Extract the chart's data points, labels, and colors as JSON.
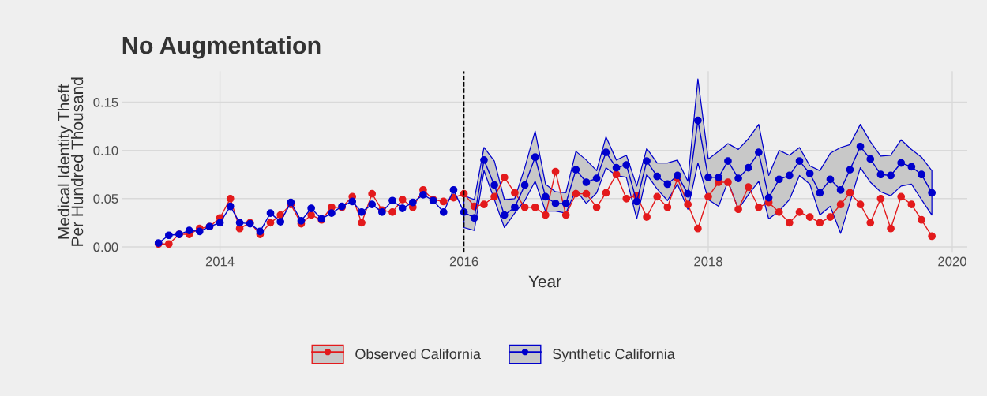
{
  "chart_data": {
    "type": "line",
    "title": "No Augmentation",
    "xlabel": "Year",
    "ylabel": "Medical Identity Theft\nPer Hundred Thousand",
    "x": [
      "2013-07",
      "2013-08",
      "2013-09",
      "2013-10",
      "2013-11",
      "2013-12",
      "2014-01",
      "2014-02",
      "2014-03",
      "2014-04",
      "2014-05",
      "2014-06",
      "2014-07",
      "2014-08",
      "2014-09",
      "2014-10",
      "2014-11",
      "2014-12",
      "2015-01",
      "2015-02",
      "2015-03",
      "2015-04",
      "2015-05",
      "2015-06",
      "2015-07",
      "2015-08",
      "2015-09",
      "2015-10",
      "2015-11",
      "2015-12",
      "2016-01",
      "2016-02",
      "2016-03",
      "2016-04",
      "2016-05",
      "2016-06",
      "2016-07",
      "2016-08",
      "2016-09",
      "2016-10",
      "2016-11",
      "2016-12",
      "2017-01",
      "2017-02",
      "2017-03",
      "2017-04",
      "2017-05",
      "2017-06",
      "2017-07",
      "2017-08",
      "2017-09",
      "2017-10",
      "2017-11",
      "2017-12",
      "2018-01",
      "2018-02",
      "2018-03",
      "2018-04",
      "2018-05",
      "2018-06",
      "2018-07",
      "2018-08",
      "2018-09",
      "2018-10",
      "2018-11",
      "2018-12",
      "2019-01",
      "2019-02",
      "2019-03",
      "2019-04",
      "2019-05",
      "2019-06",
      "2019-07",
      "2019-08",
      "2019-09",
      "2019-10",
      "2019-11"
    ],
    "series": [
      {
        "name": "Observed California",
        "color": "#e31a1c",
        "values": [
          0.003,
          0.003,
          0.013,
          0.013,
          0.019,
          0.021,
          0.03,
          0.05,
          0.019,
          0.025,
          0.013,
          0.025,
          0.033,
          0.044,
          0.024,
          0.033,
          0.028,
          0.041,
          0.041,
          0.052,
          0.025,
          0.055,
          0.038,
          0.036,
          0.049,
          0.041,
          0.059,
          0.049,
          0.047,
          0.051,
          0.055,
          0.042,
          0.044,
          0.052,
          0.072,
          0.056,
          0.041,
          0.041,
          0.033,
          0.078,
          0.033,
          0.055,
          0.055,
          0.041,
          0.056,
          0.075,
          0.05,
          0.053,
          0.031,
          0.052,
          0.041,
          0.071,
          0.044,
          0.019,
          0.052,
          0.067,
          0.067,
          0.039,
          0.062,
          0.041,
          0.046,
          0.036,
          0.025,
          0.036,
          0.031,
          0.025,
          0.031,
          0.044,
          0.056,
          0.044,
          0.025,
          0.05,
          0.019,
          0.052,
          0.044,
          0.028,
          0.011
        ]
      },
      {
        "name": "Synthetic California",
        "color": "#0000cc",
        "values": [
          0.004,
          0.012,
          0.013,
          0.017,
          0.016,
          0.021,
          0.025,
          0.042,
          0.025,
          0.024,
          0.016,
          0.035,
          0.026,
          0.046,
          0.027,
          0.04,
          0.029,
          0.035,
          0.042,
          0.047,
          0.036,
          0.044,
          0.036,
          0.048,
          0.04,
          0.046,
          0.054,
          0.048,
          0.036,
          0.059,
          0.036,
          0.03,
          0.09,
          0.064,
          0.033,
          0.041,
          0.064,
          0.093,
          0.052,
          0.045,
          0.045,
          0.08,
          0.067,
          0.071,
          0.098,
          0.082,
          0.085,
          0.047,
          0.089,
          0.073,
          0.065,
          0.074,
          0.055,
          0.131,
          0.072,
          0.072,
          0.089,
          0.071,
          0.082,
          0.098,
          0.051,
          0.07,
          0.074,
          0.089,
          0.076,
          0.056,
          0.07,
          0.059,
          0.08,
          0.104,
          0.091,
          0.075,
          0.074,
          0.087,
          0.083,
          0.075,
          0.056
        ],
        "lower": [
          null,
          null,
          null,
          null,
          null,
          null,
          null,
          null,
          null,
          null,
          null,
          null,
          null,
          null,
          null,
          null,
          null,
          null,
          null,
          null,
          null,
          null,
          null,
          null,
          null,
          null,
          null,
          null,
          null,
          null,
          0.02,
          0.017,
          0.079,
          0.049,
          0.02,
          0.035,
          0.048,
          0.068,
          0.037,
          0.037,
          0.035,
          0.059,
          0.045,
          0.056,
          0.082,
          0.074,
          0.072,
          0.029,
          0.075,
          0.06,
          0.048,
          0.065,
          0.039,
          0.087,
          0.049,
          0.042,
          0.068,
          0.039,
          0.054,
          0.068,
          0.029,
          0.037,
          0.049,
          0.074,
          0.065,
          0.033,
          0.042,
          0.014,
          0.046,
          0.082,
          0.067,
          0.057,
          0.053,
          0.063,
          0.065,
          0.049,
          0.033
        ],
        "upper": [
          null,
          null,
          null,
          null,
          null,
          null,
          null,
          null,
          null,
          null,
          null,
          null,
          null,
          null,
          null,
          null,
          null,
          null,
          null,
          null,
          null,
          null,
          null,
          null,
          null,
          null,
          null,
          null,
          null,
          null,
          0.053,
          0.049,
          0.103,
          0.089,
          0.049,
          0.05,
          0.082,
          0.12,
          0.065,
          0.057,
          0.056,
          0.099,
          0.09,
          0.079,
          0.114,
          0.09,
          0.095,
          0.063,
          0.102,
          0.087,
          0.087,
          0.09,
          0.068,
          0.174,
          0.091,
          0.099,
          0.107,
          0.101,
          0.112,
          0.127,
          0.074,
          0.1,
          0.095,
          0.103,
          0.084,
          0.079,
          0.097,
          0.103,
          0.106,
          0.127,
          0.109,
          0.094,
          0.095,
          0.111,
          0.101,
          0.093,
          0.079
        ]
      }
    ],
    "xlim": [
      "2013-03-15",
      "2020-02-15"
    ],
    "xticks": [
      {
        "value": "2014-01-01",
        "label": "2014"
      },
      {
        "value": "2016-01-01",
        "label": "2016"
      },
      {
        "value": "2018-01-01",
        "label": "2018"
      },
      {
        "value": "2020-01-01",
        "label": "2020"
      }
    ],
    "ylim": [
      -0.006,
      0.182
    ],
    "yticks": [
      {
        "value": 0,
        "label": "0.00"
      },
      {
        "value": 0.05,
        "label": "0.05"
      },
      {
        "value": 0.1,
        "label": "0.10"
      },
      {
        "value": 0.15,
        "label": "0.15"
      }
    ],
    "ref_lines": [
      {
        "axis": "x",
        "value": "2016-01",
        "color": "#000000",
        "line_style": "dashed"
      }
    ],
    "grid": true,
    "legend": "bottom",
    "marker": "circle",
    "line_style": "solid"
  }
}
